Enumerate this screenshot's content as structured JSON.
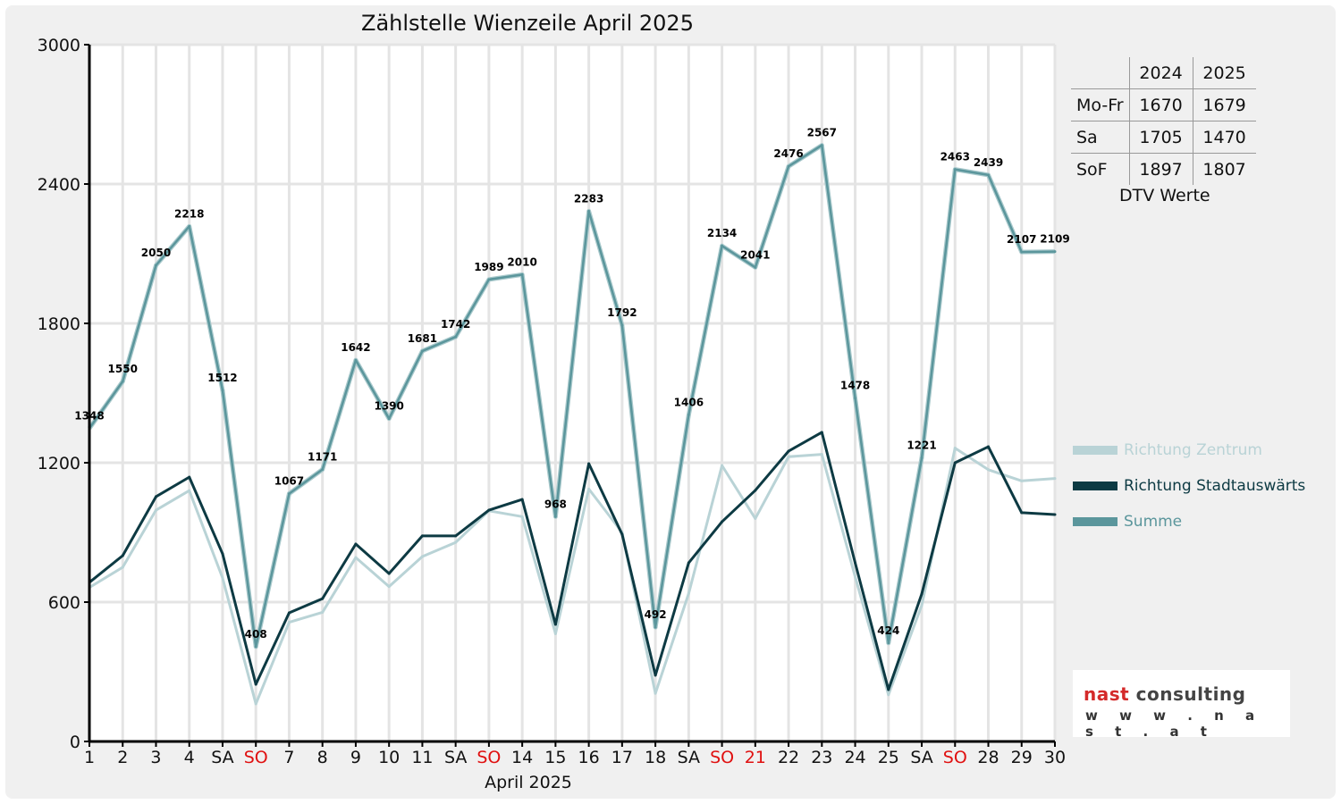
{
  "chart_data": {
    "type": "line",
    "title": "Zählstelle Wienzeile April 2025",
    "xlabel": "April 2025",
    "ylabel": "",
    "ylim": [
      0,
      3000
    ],
    "yticks": [
      0,
      600,
      1200,
      1800,
      2400,
      3000
    ],
    "grid": true,
    "legend_position": "right",
    "categories": [
      "1",
      "2",
      "3",
      "4",
      "SA",
      "SO",
      "7",
      "8",
      "9",
      "10",
      "11",
      "SA",
      "SO",
      "14",
      "15",
      "16",
      "17",
      "18",
      "SA",
      "SO",
      "21",
      "22",
      "23",
      "24",
      "25",
      "SA",
      "SO",
      "28",
      "29",
      "30"
    ],
    "red_categories": [
      5,
      12,
      19,
      20,
      26
    ],
    "series": [
      {
        "name": "Richtung Zentrum",
        "color": "#b9d3d6",
        "values": [
          663,
          750,
          996,
          1080,
          704,
          162,
          513,
          556,
          792,
          667,
          796,
          857,
          993,
          968,
          464,
          1087,
          900,
          207,
          637,
          1188,
          960,
          1226,
          1236,
          709,
          201,
          586,
          1263,
          1170,
          1122,
          1132
        ]
      },
      {
        "name": "Richtung Stadtauswärts",
        "color": "#0d3a43",
        "values": [
          685,
          800,
          1054,
          1138,
          808,
          246,
          554,
          615,
          850,
          723,
          885,
          885,
          996,
          1042,
          504,
          1196,
          892,
          285,
          769,
          946,
          1081,
          1250,
          1331,
          769,
          223,
          635,
          1200,
          1269,
          985,
          977
        ]
      },
      {
        "name": "Summe",
        "color": "#5b969c",
        "labeled": true,
        "values": [
          1348,
          1550,
          2050,
          2218,
          1512,
          408,
          1067,
          1171,
          1642,
          1390,
          1681,
          1742,
          1989,
          2010,
          968,
          2283,
          1792,
          492,
          1406,
          2134,
          2041,
          2476,
          2567,
          1478,
          424,
          1221,
          2463,
          2439,
          2107,
          2109
        ]
      }
    ]
  },
  "dtv_table": {
    "headers": [
      "",
      "2024",
      "2025"
    ],
    "rows": [
      [
        "Mo-Fr",
        "1670",
        "1679"
      ],
      [
        "Sa",
        "1705",
        "1470"
      ],
      [
        "SoF",
        "1897",
        "1807"
      ]
    ],
    "caption": "DTV Werte"
  },
  "logo": {
    "brand_red": "nast",
    "brand_dark": "consulting",
    "url": "w w w . n a s t . a t"
  },
  "colors": {
    "red": "#e01010",
    "brand_red": "#d42a2a",
    "brand_dark": "#444444"
  }
}
